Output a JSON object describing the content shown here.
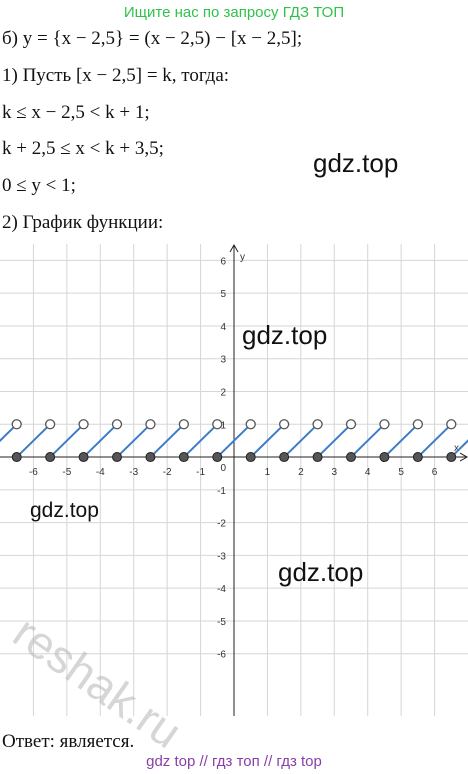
{
  "header": "Ищите нас по запросу ГДЗ ТОП",
  "lines": [
    "б) y = {x − 2,5} = (x − 2,5) − [x − 2,5];",
    "1) Пусть [x − 2,5] = k, тогда:",
    "k ≤ x − 2,5 < k + 1;",
    "k + 2,5 ≤ x < k + 3,5;",
    "0 ≤ y < 1;",
    "2) График функции:"
  ],
  "watermarks": [
    "gdz.top",
    "gdz.top",
    "gdz.top",
    "gdz.top",
    "reshak.ru"
  ],
  "graph": {
    "x_label": "x",
    "y_label": "y",
    "origin_label": "0",
    "xlim": [
      -7,
      7
    ],
    "ylim": [
      -7.9,
      6.5
    ],
    "xticks": [
      -6,
      -5,
      -4,
      -3,
      -2,
      -1,
      1,
      2,
      3,
      4,
      5,
      6
    ],
    "yticks": [
      -6,
      -5,
      -4,
      -3,
      -2,
      -1,
      1,
      2,
      3,
      4,
      5,
      6
    ],
    "jump_x": [
      -6.5,
      -5.5,
      -4.5,
      -3.5,
      -2.5,
      -1.5,
      -0.5,
      0.5,
      1.5,
      2.5,
      3.5,
      4.5,
      5.5,
      6.5
    ],
    "line_color": "#3d7cc9"
  },
  "answer": "Ответ:  является.",
  "footer": "gdz top  //  гдз топ  //  гдз top"
}
